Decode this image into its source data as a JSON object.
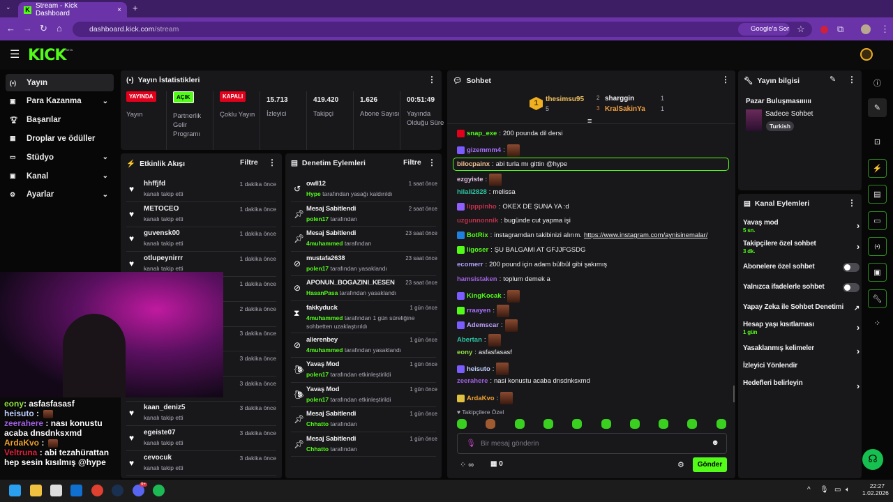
{
  "browser": {
    "tab_title": "Stream - Kick Dashboard",
    "url_host": "dashboard.kick.com",
    "url_path": "/stream",
    "google_search": "Google'a Sor",
    "new_tab": "+",
    "close": "×"
  },
  "app": {
    "logo": "KICK",
    "beta": "BETA",
    "accent": "#53fc18"
  },
  "sidebar": {
    "items": [
      {
        "label": "Yayın",
        "icon": "broadcast-icon",
        "active": true
      },
      {
        "label": "Para Kazanma",
        "icon": "money-icon",
        "expand": true
      },
      {
        "label": "Başarılar",
        "icon": "trophy-icon"
      },
      {
        "label": "Droplar ve ödüller",
        "icon": "gift-icon"
      },
      {
        "label": "Stüdyo",
        "icon": "studio-icon",
        "expand": true
      },
      {
        "label": "Kanal",
        "icon": "channel-icon",
        "expand": true
      },
      {
        "label": "Ayarlar",
        "icon": "gear-icon",
        "expand": true
      }
    ]
  },
  "stats": {
    "title": "Yayın İstatistikleri",
    "items": [
      {
        "badge": "YAYINDA",
        "badge_color": "#e3001b",
        "label": "Yayın"
      },
      {
        "badge": "AÇIK",
        "badge_color": "#53fc18",
        "label": "Partnerlik Gelir Programı"
      },
      {
        "badge": "KAPALI",
        "badge_color": "#e3001b",
        "label": "Çoklu Yayın"
      },
      {
        "value": "15.713",
        "label": "İzleyici"
      },
      {
        "value": "419.420",
        "label": "Takipçi"
      },
      {
        "value": "1.626",
        "label": "Abone Sayısı"
      },
      {
        "value": "00:51:49",
        "label": "Yayında Olduğu Süre"
      }
    ]
  },
  "activity": {
    "title": "Etkinlik Akışı",
    "filter": "Filtre",
    "items": [
      {
        "name": "hhffjfd",
        "desc": "kanalı takip etti",
        "time": "1 dakika önce"
      },
      {
        "name": "METOCEO",
        "desc": "kanalı takip etti",
        "time": "1 dakika önce"
      },
      {
        "name": "guvensk00",
        "desc": "kanalı takip etti",
        "time": "1 dakika önce"
      },
      {
        "name": "otlupeynirrr",
        "desc": "kanalı takip etti",
        "time": "1 dakika önce"
      },
      {
        "name": "",
        "desc": "",
        "time": "1 dakika önce"
      },
      {
        "name": "",
        "desc": "",
        "time": "2 dakika önce"
      },
      {
        "name": "",
        "desc": "",
        "time": "3 dakika önce"
      },
      {
        "name": "",
        "desc": "",
        "time": "3 dakika önce"
      },
      {
        "name": "",
        "desc": "",
        "time": "3 dakika önce"
      },
      {
        "name": "kaan_deniz5",
        "desc": "kanalı takip etti",
        "time": "3 dakika önce"
      },
      {
        "name": "egeiste07",
        "desc": "kanalı takip etti",
        "time": "3 dakika önce"
      },
      {
        "name": "cevocuk",
        "desc": "kanalı takip etti",
        "time": "3 dakika önce"
      }
    ]
  },
  "moderation": {
    "title": "Denetim Eylemleri",
    "filter": "Filtre",
    "items": [
      {
        "icon": "unban-icon",
        "title": "owll12",
        "by": "Hype",
        "desc": "tarafından yasağı kaldırıldı",
        "time": "1 saat önce"
      },
      {
        "icon": "pin-icon",
        "title": "Mesaj Sabitlendi",
        "by": "polen17",
        "desc": "tarafından",
        "time": "2 saat önce"
      },
      {
        "icon": "pin-icon",
        "title": "Mesaj Sabitlendi",
        "by": "4muhammed",
        "desc": "tarafından",
        "time": "23 saat önce"
      },
      {
        "icon": "ban-icon",
        "title": "mustafa2638",
        "by": "polen17",
        "desc": "tarafından yasaklandı",
        "time": "23 saat önce"
      },
      {
        "icon": "ban-icon",
        "title": "APONUN_BOGAZINI_KESEN",
        "by": "HasanPasa",
        "desc": "tarafından yasaklandı",
        "time": "23 saat önce"
      },
      {
        "icon": "hourglass-icon",
        "title": "fakkyduck",
        "by": "4muhammed",
        "desc": "tarafından 1 gün süreliğine",
        "desc2": "sohbetten uzaklaştırıldı",
        "time": "1 gün önce"
      },
      {
        "icon": "ban-icon",
        "title": "alierenbey",
        "by": "4muhammed",
        "desc": "tarafından yasaklandı",
        "time": "1 gün önce"
      },
      {
        "icon": "snail-icon",
        "title": "Yavaş Mod",
        "by": "polen17",
        "desc": "tarafından etkinleştirildi",
        "time": "1 gün önce"
      },
      {
        "icon": "snail-icon",
        "title": "Yavaş Mod",
        "by": "polen17",
        "desc": "tarafından etkinleştirildi",
        "time": "1 gün önce"
      },
      {
        "icon": "pin-icon",
        "title": "Mesaj Sabitlendi",
        "by": "Chhatto",
        "desc": "tarafından",
        "time": "1 gün önce"
      },
      {
        "icon": "pin-icon",
        "title": "Mesaj Sabitlendi",
        "by": "Chhatto",
        "desc": "tarafından",
        "time": "1 gün önce"
      }
    ]
  },
  "chat": {
    "title": "Sohbet",
    "leaderboard": {
      "first": {
        "rank": "1",
        "name": "thesimsu95",
        "count": "5"
      },
      "second": {
        "rank": "2",
        "name": "sharggin",
        "count": "1"
      },
      "third": {
        "rank": "3",
        "name": "KralSakinYa",
        "count": "1"
      }
    },
    "messages": [
      {
        "user": "snap_exe",
        "color": "#53fc18",
        "text": "200 pounda dil dersi",
        "badge": "#e3001b"
      },
      {
        "user": "gizemmm4",
        "color": "#a970ff",
        "text": "",
        "emote": true,
        "badge": "#7b5cff"
      },
      {
        "user": "bilocpainx",
        "color": "#f0c090",
        "text": "abi turla mı gittin @hype",
        "highlight": true
      },
      {
        "user": "ezgyiste",
        "color": "#e0c0e0",
        "text": "",
        "emote": true
      },
      {
        "user": "hilali2828",
        "color": "#2ec4a0",
        "text": "melissa"
      },
      {
        "user": "lipppinho",
        "color": "#c0304a",
        "text": "OKEX DE ŞUNA YA :d",
        "badge": "#9060ff"
      },
      {
        "user": "uzgunnonnik",
        "color": "#c0304a",
        "text": "bugünde cut yapma işi"
      },
      {
        "user": "BotRix",
        "color": "#53fc18",
        "text": "instagramdan takibinizi alırım. ",
        "link": "https://www.instagram.com/aynisinemalar/",
        "badge": "#2080e0"
      },
      {
        "user": "ligoser",
        "color": "#53fc18",
        "text": "ŞU BALGAMI AT GFJJFGSDG",
        "badge": "#53fc18"
      },
      {
        "user": "ecomerr",
        "color": "#b0a0ff",
        "text": "200 pound için adam bülbül gibi şakımış"
      },
      {
        "user": "hamsistaken",
        "color": "#a060e0",
        "text": "toplum demek a"
      },
      {
        "user": "KingKocak",
        "color": "#53fc18",
        "text": "",
        "emote": true,
        "badge": "#7b5cff"
      },
      {
        "user": "rraayen",
        "color": "#a970ff",
        "text": "",
        "emote": true,
        "badge": "#53fc18"
      },
      {
        "user": "Ademscar",
        "color": "#c0a0ff",
        "text": "",
        "emote": true,
        "badge": "#7b5cff"
      },
      {
        "user": "Abertan",
        "color": "#2ec4a0",
        "text": "",
        "emote": true
      },
      {
        "user": "eony",
        "color": "#90e040",
        "text": "asfasfasasf"
      },
      {
        "user": "heisuto",
        "color": "#c0d0ff",
        "text": "",
        "emote": true,
        "badge": "#7b5cff"
      },
      {
        "user": "zeerahere",
        "color": "#a060e0",
        "text": "nasi konustu acaba dnsdnksxmd"
      },
      {
        "user": "ArdaKvo",
        "color": "#f0a030",
        "text": "",
        "emote": true,
        "badge": "#e0c040"
      }
    ],
    "followers_only": "Takipçilere Özel",
    "input_placeholder": "Bir mesaj gönderin",
    "points": "∞",
    "store_count": "0",
    "send": "Gönder"
  },
  "stream_info": {
    "title": "Yayın bilgisi",
    "stream_title": "Pazar Buluşmasıııııı",
    "category": "Sadece Sohbet",
    "tag": "Turkish"
  },
  "channel_actions": {
    "title": "Kanal Eylemleri",
    "items": [
      {
        "label": "Yavaş mod",
        "sub": "5 sn.",
        "type": "chevron"
      },
      {
        "label": "Takipçilere özel sohbet",
        "sub": "3 dk.",
        "type": "chevron"
      },
      {
        "label": "Abonelere özel sohbet",
        "type": "toggle",
        "on": false
      },
      {
        "label": "Yalnızca ifadelerle sohbet",
        "type": "toggle",
        "on": false
      },
      {
        "label": "Yapay Zeka ile Sohbet Denetimi",
        "type": "external"
      },
      {
        "label": "Hesap yaşı kısıtlaması",
        "sub": "1 gün",
        "type": "chevron"
      },
      {
        "label": "Yasaklanmış kelimeler",
        "type": "chevron"
      },
      {
        "label": "İzleyici Yönlendir",
        "type": "none"
      },
      {
        "label": "Hedefleri belirleyin",
        "type": "chevron"
      }
    ]
  },
  "overlay_chat": [
    {
      "user": "eony",
      "color": "#90e040",
      "text": ": asfasfasasf"
    },
    {
      "user": "heisuto",
      "color": "#c0d0ff",
      "text": " :",
      "emote": true
    },
    {
      "user": "zeerahere",
      "color": "#a060e0",
      "text": " : nası konustu acaba dnsdnksxmd"
    },
    {
      "user": "ArdaKvo",
      "color": "#f0a030",
      "text": " :",
      "emote": true
    },
    {
      "user": "Veltruna",
      "color": "#e0203a",
      "text": " : abi tezahürattan hep sesin kısılmış @hype"
    }
  ],
  "taskbar": {
    "time": "22:27",
    "date": "1.02.2026",
    "discord_badge": "9+"
  }
}
